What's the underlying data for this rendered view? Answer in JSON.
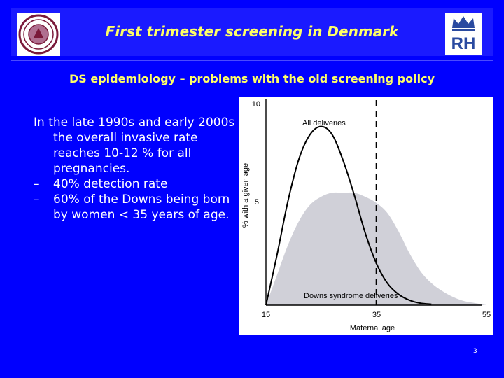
{
  "slide": {
    "title": "First trimester screening in Denmark",
    "subtitle": "DS epidemiology – problems with the old screening policy",
    "page_number": "3"
  },
  "body": {
    "intro": "In the late 1990s and early 2000s the overall invasive rate reaches 10-12 % for all pregnancies.",
    "sub_items": [
      "40% detection rate",
      "60% of the Downs being born by women < 35 years of age."
    ],
    "dash_glyph": "–"
  },
  "logos": {
    "right_text": "RH",
    "left_icon": "university-seal-icon",
    "right_icon": "crown-rh-logo-icon"
  },
  "colors": {
    "background": "#0000ff",
    "title": "#ffff66",
    "shaded_area": "#d0d0d8"
  },
  "chart_data": {
    "type": "area",
    "xlabel": "Maternal age",
    "ylabel": "% with a given age",
    "x_ticks": [
      "15",
      "35",
      "55"
    ],
    "y_ticks": [
      "5",
      "10"
    ],
    "xlim": [
      15,
      55
    ],
    "ylim": [
      0,
      10
    ],
    "series": [
      {
        "name": "All deliveries",
        "style": "line",
        "points": [
          [
            15,
            0
          ],
          [
            17,
            2.5
          ],
          [
            19,
            5.2
          ],
          [
            21,
            7.3
          ],
          [
            23,
            8.5
          ],
          [
            25,
            8.9
          ],
          [
            27,
            8.5
          ],
          [
            29,
            7.2
          ],
          [
            31,
            5.5
          ],
          [
            33,
            3.6
          ],
          [
            35,
            2.1
          ],
          [
            37,
            1.1
          ],
          [
            39,
            0.55
          ],
          [
            41,
            0.25
          ],
          [
            43,
            0.1
          ],
          [
            45,
            0.05
          ]
        ]
      },
      {
        "name": "Downs syndrome deliveries",
        "style": "area",
        "points": [
          [
            15,
            0
          ],
          [
            17,
            1.5
          ],
          [
            19,
            3.0
          ],
          [
            21,
            4.2
          ],
          [
            23,
            5.0
          ],
          [
            25,
            5.4
          ],
          [
            27,
            5.6
          ],
          [
            29,
            5.6
          ],
          [
            31,
            5.6
          ],
          [
            33,
            5.4
          ],
          [
            35,
            5.1
          ],
          [
            37,
            4.6
          ],
          [
            39,
            3.7
          ],
          [
            41,
            2.6
          ],
          [
            43,
            1.7
          ],
          [
            45,
            1.1
          ],
          [
            47,
            0.7
          ],
          [
            49,
            0.4
          ],
          [
            51,
            0.2
          ],
          [
            53,
            0.1
          ],
          [
            55,
            0
          ]
        ]
      }
    ],
    "reference_line": {
      "x": 35,
      "style": "dashed"
    }
  }
}
